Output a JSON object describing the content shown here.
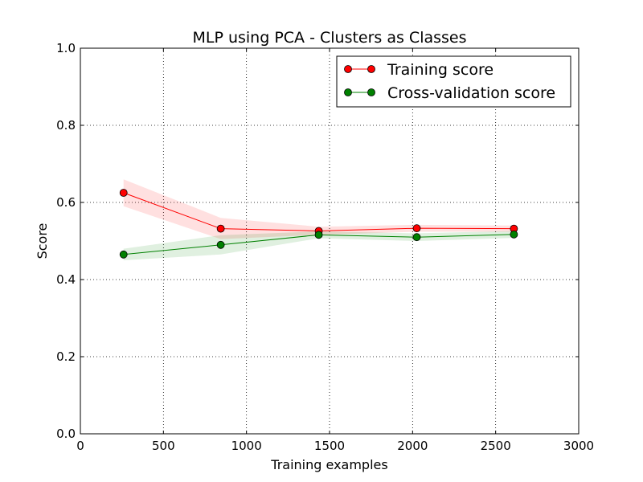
{
  "chart_data": {
    "type": "line",
    "title": "MLP using PCA - Clusters as Classes",
    "xlabel": "Training examples",
    "ylabel": "Score",
    "xlim": [
      0,
      3000
    ],
    "ylim": [
      0.0,
      1.0
    ],
    "xticks": [
      0,
      500,
      1000,
      1500,
      2000,
      2500,
      3000
    ],
    "xtick_labels": [
      "0",
      "500",
      "1000",
      "1500",
      "2000",
      "2500",
      "3000"
    ],
    "yticks": [
      0.0,
      0.2,
      0.4,
      0.6,
      0.8,
      1.0
    ],
    "ytick_labels": [
      "0.0",
      "0.2",
      "0.4",
      "0.6",
      "0.8",
      "1.0"
    ],
    "grid": true,
    "legend_position": "top-right",
    "x": [
      260,
      845,
      1435,
      2025,
      2610
    ],
    "series": [
      {
        "name": "Training score",
        "color": "#ff0000",
        "values": [
          0.625,
          0.532,
          0.526,
          0.533,
          0.532
        ],
        "band_lower": [
          0.59,
          0.505,
          0.516,
          0.524,
          0.524
        ],
        "band_upper": [
          0.66,
          0.56,
          0.537,
          0.542,
          0.54
        ]
      },
      {
        "name": "Cross-validation score",
        "color": "#008000",
        "values": [
          0.465,
          0.49,
          0.516,
          0.51,
          0.517
        ],
        "band_lower": [
          0.45,
          0.465,
          0.507,
          0.5,
          0.508
        ],
        "band_upper": [
          0.48,
          0.515,
          0.525,
          0.52,
          0.526
        ]
      }
    ]
  }
}
